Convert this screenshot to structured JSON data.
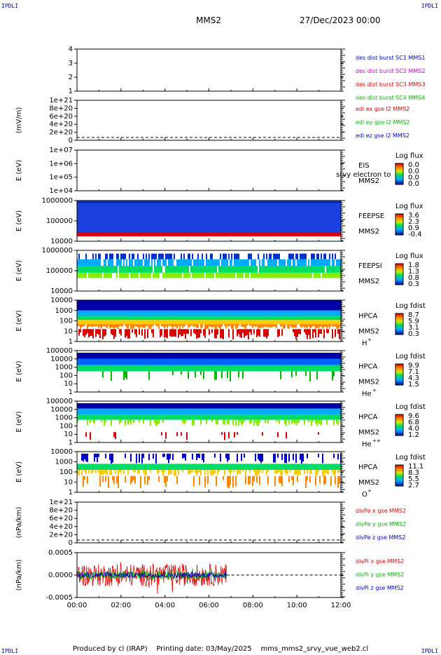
{
  "header": {
    "corner_tl": "IPDLI",
    "corner_tr": "IPDLI",
    "corner_bl": "IPDLI",
    "corner_br": "IPDLI",
    "spacecraft": "MMS2",
    "datetime": "27/Dec/2023 00:00"
  },
  "footer": {
    "produced_by": "Produced by cl (IRAP)",
    "printing_date": "Printing date: 03/May/2025",
    "script": "mms_mms2_srvy_vue_web2.cl"
  },
  "colors": {
    "blue": "#0000cc",
    "magenta": "#cc00cc",
    "red": "#dd0000",
    "green": "#00bb00",
    "spectrogram_background": "#0000aa"
  },
  "panels": [
    {
      "id": "panel-burst",
      "ylabel": "",
      "yticks": [
        "4",
        "3",
        "2",
        "1"
      ],
      "legend": [
        {
          "text": "des dist burst SC1 MMS1",
          "color": "#0000cc"
        },
        {
          "text": "des dist burst SC2 MMS2",
          "color": "#cc00cc"
        },
        {
          "text": "des dist burst SC3 MMS3",
          "color": "#dd0000"
        },
        {
          "text": "des dist burst SC4 MMS4",
          "color": "#00bb00"
        }
      ]
    },
    {
      "id": "panel-edi",
      "ylabel": "(mV/m)",
      "yticks": [
        "1e+21",
        "8e+20",
        "6e+20",
        "4e+20",
        "2e+20",
        "0"
      ],
      "legend": [
        {
          "text": "edi ex gse l2 MMS2",
          "color": "#dd0000"
        },
        {
          "text": "edi ey gse l2 MMS2",
          "color": "#00bb00"
        },
        {
          "text": "edi ez gse l2 MMS2",
          "color": "#0000cc"
        }
      ]
    },
    {
      "id": "panel-eis",
      "ylabel": "E (eV)",
      "yticks": [
        "1e+07",
        "1e+06",
        "1e+05",
        "1e+04"
      ],
      "instrument": "EIS",
      "extra": "srvy electron to",
      "sc": "MMS2",
      "cb_title": "Log flux",
      "cb_ticks": [
        "0.0",
        "0.0",
        "0.0",
        "0.0"
      ]
    },
    {
      "id": "panel-feepse",
      "ylabel": "E (eV)",
      "yticks": [
        "1000000",
        "100000",
        "10000"
      ],
      "instrument": "FEEPSE",
      "sc": "MMS2",
      "cb_title": "Log flux",
      "cb_ticks": [
        "3.6",
        "2.3",
        "0.9",
        "-0.4"
      ]
    },
    {
      "id": "panel-feepsi",
      "ylabel": "E (eV)",
      "yticks": [
        "1000000",
        "100000",
        "10000"
      ],
      "instrument": "FEEPSI",
      "sc": "MMS2",
      "cb_title": "Log flux",
      "cb_ticks": [
        "1.8",
        "1.3",
        "0.8",
        "0.3"
      ]
    },
    {
      "id": "panel-hpca-h",
      "ylabel": "E (eV)",
      "yticks": [
        "10000",
        "1000",
        "100",
        "10",
        "1"
      ],
      "instrument": "HPCA",
      "sc": "MMS2",
      "species": "H",
      "charge": "+",
      "cb_title": "Log fdist",
      "cb_ticks": [
        "8.7",
        "5.9",
        "3.1",
        "0.3"
      ]
    },
    {
      "id": "panel-hpca-he",
      "ylabel": "E (eV)",
      "yticks": [
        "100000",
        "10000",
        "1000",
        "100",
        "10",
        "1"
      ],
      "instrument": "HPCA",
      "sc": "MMS2",
      "species": "He",
      "charge": "+",
      "cb_title": "Log fdist",
      "cb_ticks": [
        "9.9",
        "7.1",
        "4.3",
        "1.5"
      ]
    },
    {
      "id": "panel-hpca-he2",
      "ylabel": "E (eV)",
      "yticks": [
        "100000",
        "10000",
        "1000",
        "100",
        "10",
        "1"
      ],
      "instrument": "HPCA",
      "sc": "MMS2",
      "species": "He",
      "charge": "++",
      "cb_title": "Log fdist",
      "cb_ticks": [
        "9.6",
        "6.8",
        "4.0",
        "1.2"
      ]
    },
    {
      "id": "panel-hpca-o",
      "ylabel": "E (eV)",
      "yticks": [
        "10000",
        "1000",
        "100",
        "10",
        "1"
      ],
      "instrument": "HPCA",
      "sc": "MMS2",
      "species": "O",
      "charge": "+",
      "cb_title": "Log fdist",
      "cb_ticks": [
        "11.1",
        "8.3",
        "5.5",
        "2.7"
      ]
    },
    {
      "id": "panel-divpe",
      "ylabel": "(nPa/km)",
      "yticks": [
        "1e+21",
        "8e+20",
        "6e+20",
        "4e+20",
        "2e+20",
        "0"
      ],
      "legend": [
        {
          "text": "divPe x gse MMS2",
          "color": "#dd0000"
        },
        {
          "text": "divPe y gse MMS2",
          "color": "#00bb00"
        },
        {
          "text": "divPe z gse MMS2",
          "color": "#0000cc"
        }
      ]
    },
    {
      "id": "panel-divpi",
      "ylabel": "(nPa/km)",
      "yticks": [
        "0.0005",
        "0.0000",
        "-0.0005"
      ],
      "legend": [
        {
          "text": "divPi x gse MMS2",
          "color": "#dd0000"
        },
        {
          "text": "divPi y gse MMS2",
          "color": "#00bb00"
        },
        {
          "text": "divPi z gse MMS2",
          "color": "#0000cc"
        }
      ]
    }
  ],
  "chart_data": {
    "type": "line",
    "title": "MMS2",
    "xlabel": "",
    "x_ticks": [
      "00:00",
      "02:00",
      "04:00",
      "06:00",
      "08:00",
      "10:00",
      "12:00"
    ],
    "x_range_hours": [
      0,
      12
    ],
    "data_end_hour": 6.8,
    "series": [
      {
        "name": "divPi x gse MMS2",
        "color": "#dd0000",
        "ylim": [
          -0.0008,
          0.0008
        ],
        "typical_amplitude": 0.0004
      },
      {
        "name": "divPi y gse MMS2",
        "color": "#00bb00",
        "ylim": [
          -0.0008,
          0.0008
        ],
        "typical_amplitude": 0.00015
      },
      {
        "name": "divPi z gse MMS2",
        "color": "#0000cc",
        "ylim": [
          -0.0008,
          0.0008
        ],
        "typical_amplitude": 0.0001
      }
    ]
  }
}
